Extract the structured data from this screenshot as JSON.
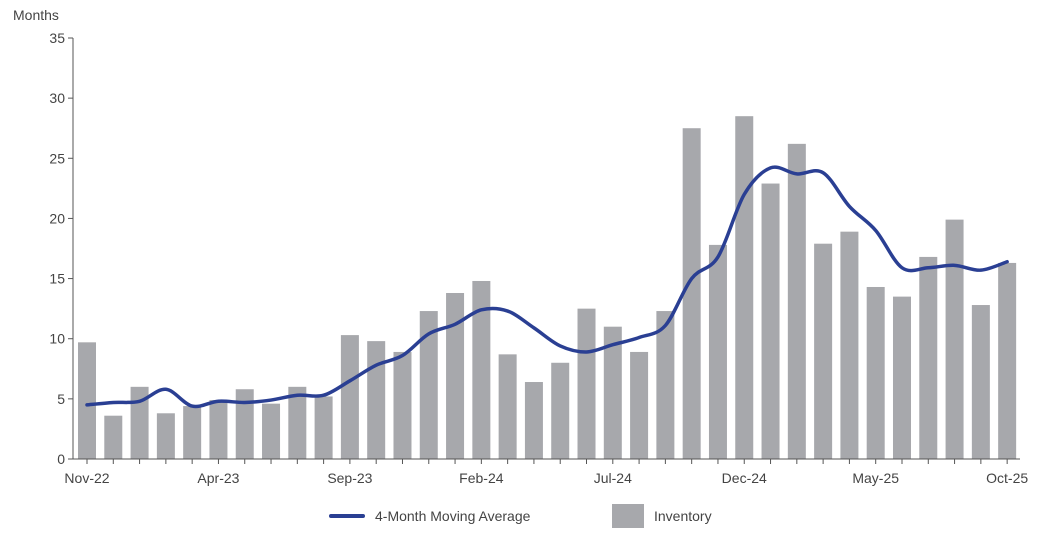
{
  "chart_data": {
    "type": "bar",
    "ylabel": "Months",
    "ylim": [
      0,
      35
    ],
    "yticks": [
      "0",
      "5",
      "10",
      "15",
      "20",
      "25",
      "30",
      "35"
    ],
    "categories": [
      "Nov-22",
      "Dec-22",
      "Jan-23",
      "Feb-23",
      "Mar-23",
      "Apr-23",
      "May-23",
      "Jun-23",
      "Jul-23",
      "Aug-23",
      "Sep-23",
      "Oct-23",
      "Nov-23",
      "Dec-23",
      "Jan-24",
      "Feb-24",
      "Mar-24",
      "Apr-24",
      "May-24",
      "Jun-24",
      "Jul-24",
      "Aug-24",
      "Sep-24",
      "Oct-24",
      "Nov-24",
      "Dec-24",
      "Jan-25",
      "Feb-25",
      "Mar-25",
      "Apr-25",
      "May-25",
      "Jun-25",
      "Jul-25",
      "Aug-25",
      "Sep-25",
      "Oct-25"
    ],
    "xtick_labels": [
      "Nov-22",
      "Apr-23",
      "Sep-23",
      "Feb-24",
      "Jul-24",
      "Dec-24",
      "May-25",
      "Oct-25"
    ],
    "grid": false,
    "legend_position": "bottom",
    "series": [
      {
        "name": "Inventory",
        "type": "bar",
        "color": "#a7a8ac",
        "values": [
          9.7,
          3.6,
          6.0,
          3.8,
          4.4,
          4.9,
          5.8,
          4.6,
          6.0,
          5.2,
          10.3,
          9.8,
          8.9,
          12.3,
          13.8,
          14.8,
          8.7,
          6.4,
          8.0,
          12.5,
          11.0,
          8.9,
          12.3,
          27.5,
          17.8,
          28.5,
          22.9,
          26.2,
          17.9,
          18.9,
          14.3,
          13.5,
          16.8,
          19.9,
          12.8,
          16.3
        ]
      },
      {
        "name": "4-Month Moving Average",
        "type": "line",
        "color": "#2a3f93",
        "values": [
          4.5,
          4.7,
          4.8,
          5.8,
          4.4,
          4.8,
          4.7,
          4.9,
          5.3,
          5.3,
          6.5,
          7.8,
          8.6,
          10.4,
          11.2,
          12.4,
          12.3,
          10.9,
          9.4,
          8.9,
          9.5,
          10.1,
          11.1,
          15.0,
          16.8,
          22.0,
          24.2,
          23.7,
          23.8,
          21.0,
          19.0,
          15.9,
          15.9,
          16.1,
          15.7,
          16.4
        ]
      }
    ]
  }
}
